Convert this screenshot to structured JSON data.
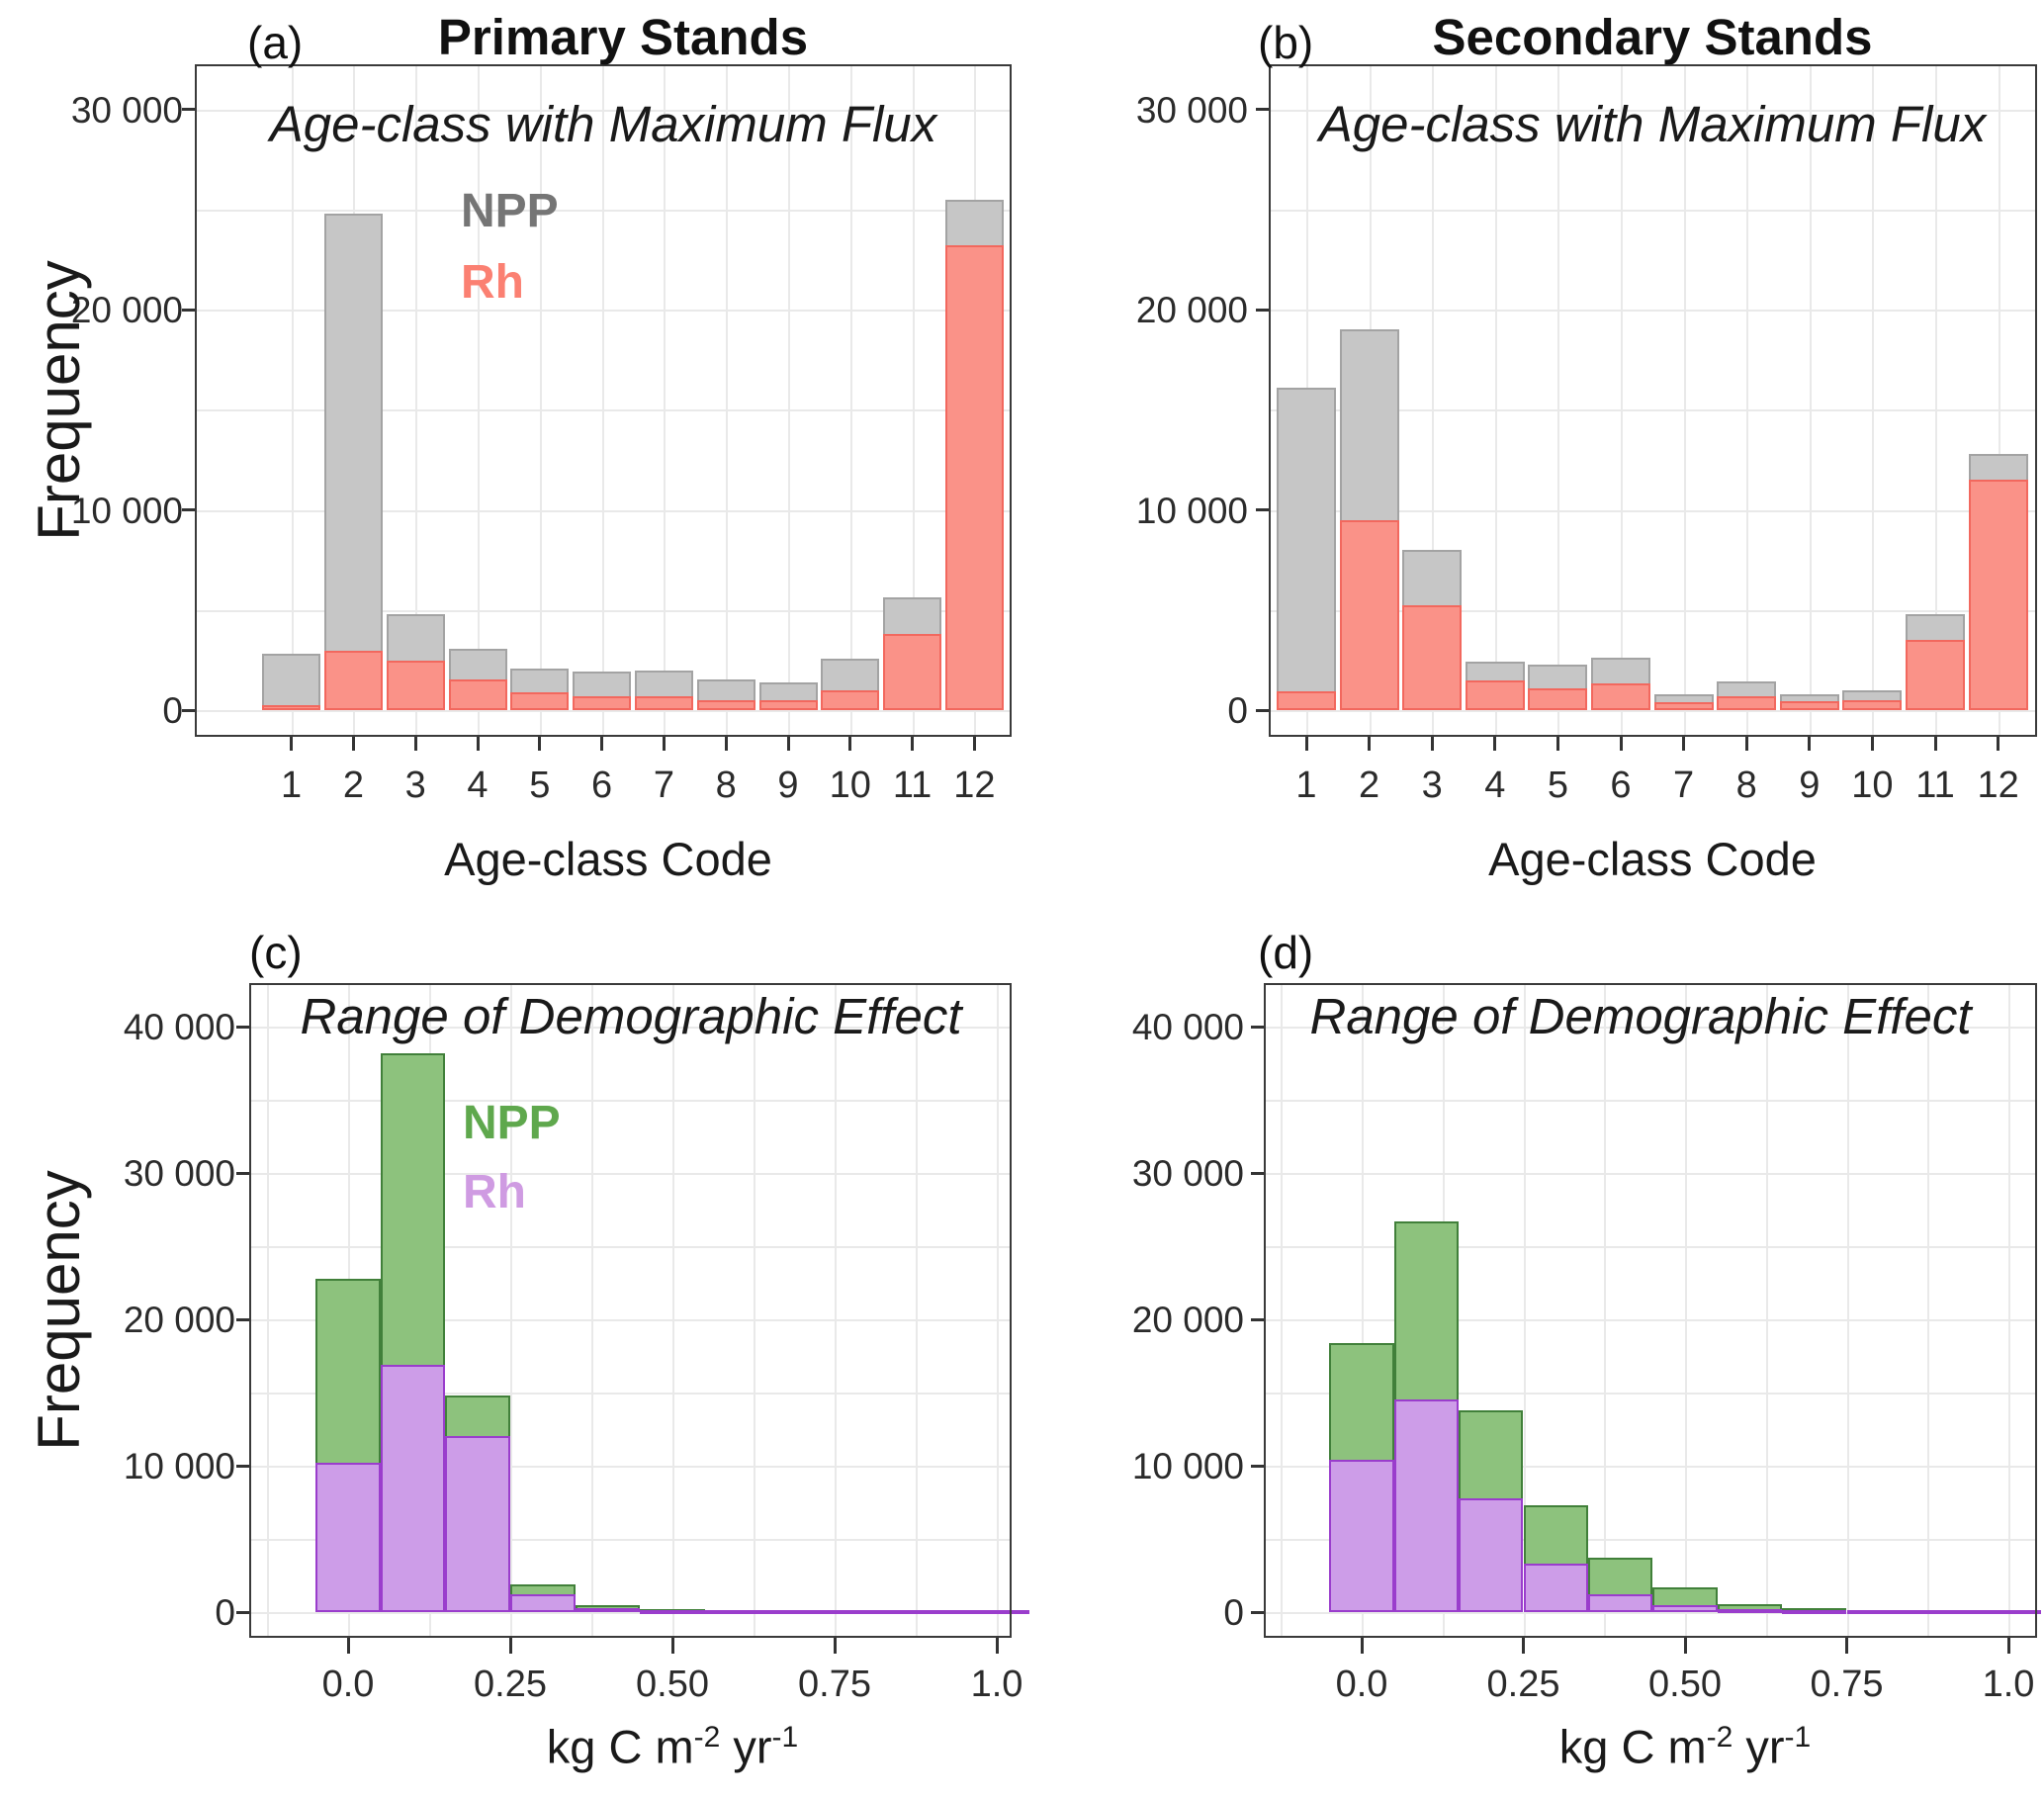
{
  "figure": {
    "frequency_label": "Frequency",
    "panels": [
      {
        "id": "a",
        "letter": "(a)",
        "title": "Primary Stands",
        "subtitle": "Age-class with Maximum Flux",
        "legend": {
          "npp": "NPP",
          "rh": "Rh"
        },
        "xlabel": "Age-class Code",
        "x_tick_labels": [
          "1",
          "2",
          "3",
          "4",
          "5",
          "6",
          "7",
          "8",
          "9",
          "10",
          "11",
          "12"
        ],
        "y_tick_labels": [
          "30 000",
          "20 000",
          "10 000",
          "0"
        ],
        "y_tick_values": [
          30000,
          20000,
          10000,
          0
        ]
      },
      {
        "id": "b",
        "letter": "(b)",
        "title": "Secondary Stands",
        "subtitle": "Age-class with Maximum Flux",
        "legend": null,
        "xlabel": "Age-class Code",
        "x_tick_labels": [
          "1",
          "2",
          "3",
          "4",
          "5",
          "6",
          "7",
          "8",
          "9",
          "10",
          "11",
          "12"
        ],
        "y_tick_labels": [
          "30 000",
          "20 000",
          "10 000",
          "0"
        ],
        "y_tick_values": [
          30000,
          20000,
          10000,
          0
        ]
      },
      {
        "id": "c",
        "letter": "(c)",
        "title": null,
        "subtitle": "Range of Demographic Effect",
        "legend": {
          "npp": "NPP",
          "rh": "Rh"
        },
        "xlabel_parts": {
          "p1": "kg C m",
          "s1": "-2",
          "p2": " yr",
          "s2": "-1"
        },
        "x_tick_labels": [
          "0.0",
          "0.25",
          "0.50",
          "0.75",
          "1.0"
        ],
        "y_tick_labels": [
          "40 000",
          "30 000",
          "20 000",
          "10 000",
          "0"
        ],
        "y_tick_values": [
          40000,
          30000,
          20000,
          10000,
          0
        ]
      },
      {
        "id": "d",
        "letter": "(d)",
        "title": null,
        "subtitle": "Range of Demographic Effect",
        "legend": null,
        "xlabel_parts": {
          "p1": "kg C m",
          "s1": "-2",
          "p2": " yr",
          "s2": "-1"
        },
        "x_tick_labels": [
          "0.0",
          "0.25",
          "0.50",
          "0.75",
          "1.0"
        ],
        "y_tick_labels": [
          "40 000",
          "30 000",
          "20 000",
          "10 000",
          "0"
        ],
        "y_tick_values": [
          40000,
          30000,
          20000,
          10000,
          0
        ]
      }
    ]
  },
  "chart_data": [
    {
      "panel": "a",
      "type": "bar",
      "title": "Primary Stands",
      "subtitle": "Age-class with Maximum Flux",
      "xlabel": "Age-class Code",
      "ylabel": "Frequency",
      "categories": [
        1,
        2,
        3,
        4,
        5,
        6,
        7,
        8,
        9,
        10,
        11,
        12
      ],
      "series": [
        {
          "name": "NPP",
          "values": [
            2800,
            24800,
            4800,
            3050,
            2050,
            1950,
            2000,
            1550,
            1400,
            2550,
            5650,
            25500
          ]
        },
        {
          "name": "Rh",
          "values": [
            250,
            2950,
            2450,
            1550,
            900,
            700,
            700,
            500,
            500,
            1000,
            3800,
            23200
          ]
        }
      ],
      "ylim": [
        0,
        32000
      ],
      "y_ticks": [
        0,
        10000,
        20000,
        30000
      ],
      "overlay": true,
      "grid": true,
      "legend_position": "inside-top-left"
    },
    {
      "panel": "b",
      "type": "bar",
      "title": "Secondary Stands",
      "subtitle": "Age-class with Maximum Flux",
      "xlabel": "Age-class Code",
      "ylabel": "Frequency",
      "categories": [
        1,
        2,
        3,
        4,
        5,
        6,
        7,
        8,
        9,
        10,
        11,
        12
      ],
      "series": [
        {
          "name": "NPP",
          "values": [
            16100,
            19000,
            8000,
            2400,
            2250,
            2600,
            800,
            1450,
            800,
            1000,
            4800,
            12800
          ]
        },
        {
          "name": "Rh",
          "values": [
            950,
            9500,
            5250,
            1500,
            1100,
            1350,
            400,
            700,
            450,
            500,
            3500,
            11500
          ]
        }
      ],
      "ylim": [
        0,
        32000
      ],
      "y_ticks": [
        0,
        10000,
        20000,
        30000
      ],
      "overlay": true,
      "grid": true,
      "legend_position": "none"
    },
    {
      "panel": "c",
      "type": "bar",
      "title": null,
      "subtitle": "Range of Demographic Effect",
      "xlabel": "kg C m-2 yr-1",
      "ylabel": "Frequency",
      "bin_centers": [
        0.0,
        0.1,
        0.2,
        0.3,
        0.4,
        0.5,
        0.6,
        0.7,
        0.8,
        0.9,
        1.0
      ],
      "bin_width": 0.1,
      "series": [
        {
          "name": "NPP",
          "values": [
            22800,
            38200,
            14800,
            1900,
            450,
            200,
            130,
            110,
            90,
            80,
            70
          ]
        },
        {
          "name": "Rh",
          "values": [
            10200,
            16900,
            12000,
            1200,
            250,
            130,
            90,
            70,
            50,
            40,
            30
          ]
        }
      ],
      "xlim": [
        -0.15,
        1.07
      ],
      "x_ticks": [
        0.0,
        0.25,
        0.5,
        0.75,
        1.0
      ],
      "ylim": [
        0,
        43000
      ],
      "y_ticks": [
        0,
        10000,
        20000,
        30000,
        40000
      ],
      "overlay": true,
      "grid": true,
      "legend_position": "inside-top-left"
    },
    {
      "panel": "d",
      "type": "bar",
      "title": null,
      "subtitle": "Range of Demographic Effect",
      "xlabel": "kg C m-2 yr-1",
      "ylabel": "Frequency",
      "bin_centers": [
        0.0,
        0.1,
        0.2,
        0.3,
        0.4,
        0.5,
        0.6,
        0.7,
        0.8,
        0.9,
        1.0
      ],
      "bin_width": 0.1,
      "series": [
        {
          "name": "NPP",
          "values": [
            18400,
            26700,
            13800,
            7300,
            3700,
            1700,
            550,
            270,
            160,
            120,
            100
          ]
        },
        {
          "name": "Rh",
          "values": [
            10400,
            14500,
            7800,
            3300,
            1200,
            500,
            220,
            120,
            80,
            60,
            50
          ]
        }
      ],
      "xlim": [
        -0.15,
        1.07
      ],
      "x_ticks": [
        0.0,
        0.25,
        0.5,
        0.75,
        1.0
      ],
      "ylim": [
        0,
        43000
      ],
      "y_ticks": [
        0,
        10000,
        20000,
        30000,
        40000
      ],
      "overlay": true,
      "grid": true,
      "legend_position": "none"
    }
  ],
  "colors": {
    "npp_gray_fill": "#c6c6c6",
    "npp_gray_stroke": "#a3a3a3",
    "rh_salmon_fill": "#fa9288",
    "rh_salmon_stroke": "#f2685e",
    "npp_green_fill": "#8dc27d",
    "npp_green_stroke": "#41803a",
    "rh_purple_fill": "#cd9de8",
    "rh_purple_stroke": "#9a3dcc",
    "legend_npp_gray": "#757575",
    "legend_rh_salmon": "#fb8072",
    "legend_npp_green": "#5fa84d",
    "legend_rh_purple": "#cf9be2",
    "grid": "#e9e9e9",
    "panel_border": "#3a3a3a",
    "text": "#1a1a1a"
  }
}
